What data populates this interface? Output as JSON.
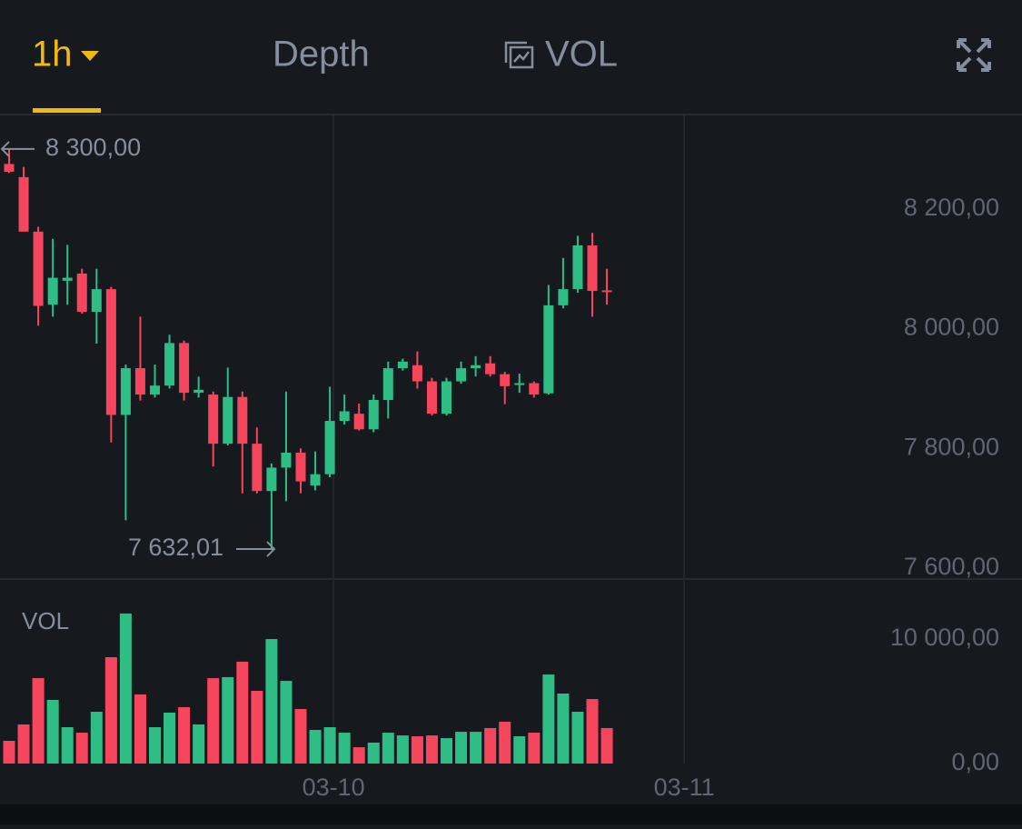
{
  "header": {
    "interval": "1h",
    "tabs": [
      "Depth",
      "VOL"
    ]
  },
  "chart_data": [
    {
      "type": "candlestick",
      "categories": [
        null,
        null,
        null,
        null,
        null,
        null,
        null,
        null,
        null,
        null,
        null,
        null,
        null,
        null,
        null,
        null,
        null,
        null,
        null,
        null,
        null,
        null,
        null,
        null,
        null,
        null,
        null,
        null,
        null,
        null,
        null,
        null,
        null,
        null,
        null,
        null,
        null,
        null,
        null,
        null,
        null,
        null
      ],
      "open": [
        8275,
        8253,
        8162,
        8040,
        8080,
        8092,
        8028,
        8066,
        7856,
        7934,
        7890,
        7905,
        7976,
        7893,
        7890,
        7808,
        7886,
        7808,
        7729,
        7768,
        7793,
        7738,
        7757,
        7846,
        7858,
        7832,
        7881,
        7934,
        7939,
        7912,
        7858,
        7912,
        7934,
        7942,
        7924,
        7907,
        7909,
        7892,
        8039,
        8066,
        8139,
        8064
      ],
      "high": [
        8300,
        8270,
        8170,
        8150,
        8140,
        8100,
        8100,
        8070,
        7940,
        8020,
        7940,
        7990,
        7980,
        7920,
        7895,
        7935,
        7895,
        7835,
        7775,
        7895,
        7800,
        7795,
        7903,
        7890,
        7875,
        7890,
        7945,
        7950,
        7962,
        7918,
        7918,
        7945,
        7954,
        7954,
        7928,
        7925,
        7912,
        8073,
        8118,
        8155,
        8160,
        8100
      ],
      "low": [
        8260,
        8165,
        8005,
        8020,
        8040,
        8025,
        7975,
        7810,
        7680,
        7880,
        7885,
        7900,
        7880,
        7885,
        7770,
        7805,
        7725,
        7725,
        7632.01,
        7712,
        7725,
        7730,
        7752,
        7840,
        7830,
        7827,
        7850,
        7930,
        7900,
        7855,
        7855,
        7908,
        7920,
        7920,
        7874,
        7893,
        7885,
        7890,
        8034,
        8060,
        8020,
        8040
      ],
      "close": [
        8262,
        8162,
        8038,
        8085,
        8085,
        8028,
        8066,
        7856,
        7934,
        7890,
        7905,
        7976,
        7893,
        7898,
        7808,
        7886,
        7808,
        7729,
        7768,
        7793,
        7745,
        7757,
        7846,
        7862,
        7832,
        7881,
        7934,
        7945,
        7912,
        7858,
        7912,
        7934,
        7939,
        7924,
        7904,
        7909,
        7890,
        8039,
        8066,
        8139,
        8063,
        8061
      ],
      "up_color": "#2ebd85",
      "down_color": "#f6465d",
      "ylim": [
        7582,
        8356
      ],
      "yticks": [
        {
          "value": 8200,
          "label": "8 200,00"
        },
        {
          "value": 8000,
          "label": "8 000,00"
        },
        {
          "value": 7800,
          "label": "7 800,00"
        },
        {
          "value": 7600,
          "label": "7 600,00"
        }
      ],
      "xticks": [
        {
          "value": 22.25,
          "label": "03-10"
        },
        {
          "value": 46.3,
          "label": "03-11"
        }
      ],
      "annotations": [
        {
          "value": 8300,
          "label": "8 300,00"
        },
        {
          "value": 7632.01,
          "label": "7 632,01"
        }
      ]
    },
    {
      "type": "bar",
      "title": "VOL",
      "values": [
        1825,
        3140,
        6860,
        5110,
        2920,
        2480,
        4160,
        8540,
        12050,
        5550,
        2920,
        4090,
        4530,
        3140,
        6860,
        6940,
        8180,
        5840,
        10000,
        6640,
        4380,
        2700,
        2920,
        2480,
        1310,
        1680,
        2480,
        2260,
        2190,
        2260,
        2040,
        2550,
        2550,
        2850,
        3360,
        2190,
        2480,
        7150,
        5620,
        4160,
        5180,
        2850
      ],
      "ylim": [
        0,
        14600
      ],
      "yticks": [
        {
          "value": 10000,
          "label": "10 000,00"
        },
        {
          "value": 0,
          "label": "0,00"
        }
      ]
    }
  ]
}
